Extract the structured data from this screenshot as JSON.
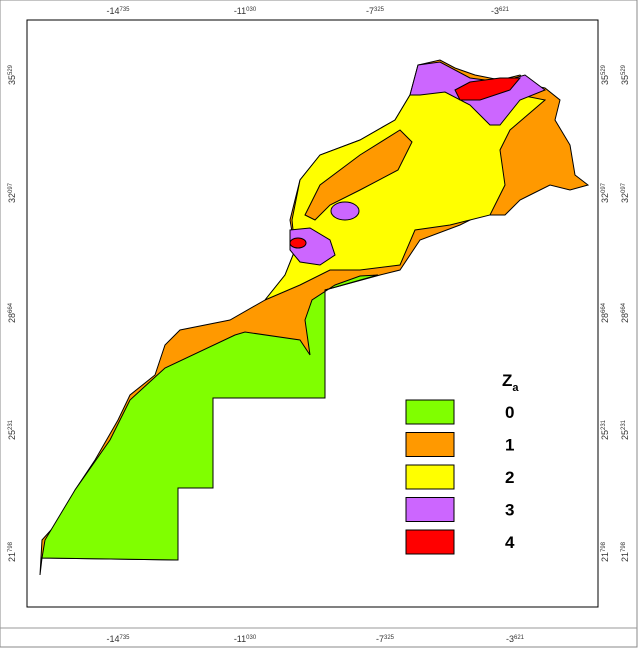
{
  "axes": {
    "top": [
      {
        "deg": "-14",
        "frac": "735"
      },
      {
        "deg": "-11",
        "frac": "030"
      },
      {
        "deg": "-7",
        "frac": "325"
      },
      {
        "deg": "-3",
        "frac": "621"
      }
    ],
    "bottom": [
      {
        "deg": "-14",
        "frac": "735"
      },
      {
        "deg": "-11",
        "frac": "030"
      },
      {
        "deg": "-7",
        "frac": "325"
      },
      {
        "deg": "-3",
        "frac": "621"
      }
    ],
    "left": [
      {
        "deg": "35",
        "frac": "529"
      },
      {
        "deg": "32",
        "frac": "097"
      },
      {
        "deg": "28",
        "frac": "664"
      },
      {
        "deg": "25",
        "frac": "231"
      },
      {
        "deg": "21",
        "frac": "798"
      }
    ],
    "right": [
      {
        "deg": "35",
        "frac": "529"
      },
      {
        "deg": "32",
        "frac": "097"
      },
      {
        "deg": "28",
        "frac": "664"
      },
      {
        "deg": "25",
        "frac": "231"
      },
      {
        "deg": "21",
        "frac": "798"
      }
    ]
  },
  "legend": {
    "title": "Z",
    "title_sub": "a",
    "items": [
      {
        "label": "0",
        "color": "#80ff00"
      },
      {
        "label": "1",
        "color": "#ff9900"
      },
      {
        "label": "2",
        "color": "#ffff00"
      },
      {
        "label": "3",
        "color": "#cc66ff"
      },
      {
        "label": "4",
        "color": "#ff0000"
      }
    ]
  }
}
